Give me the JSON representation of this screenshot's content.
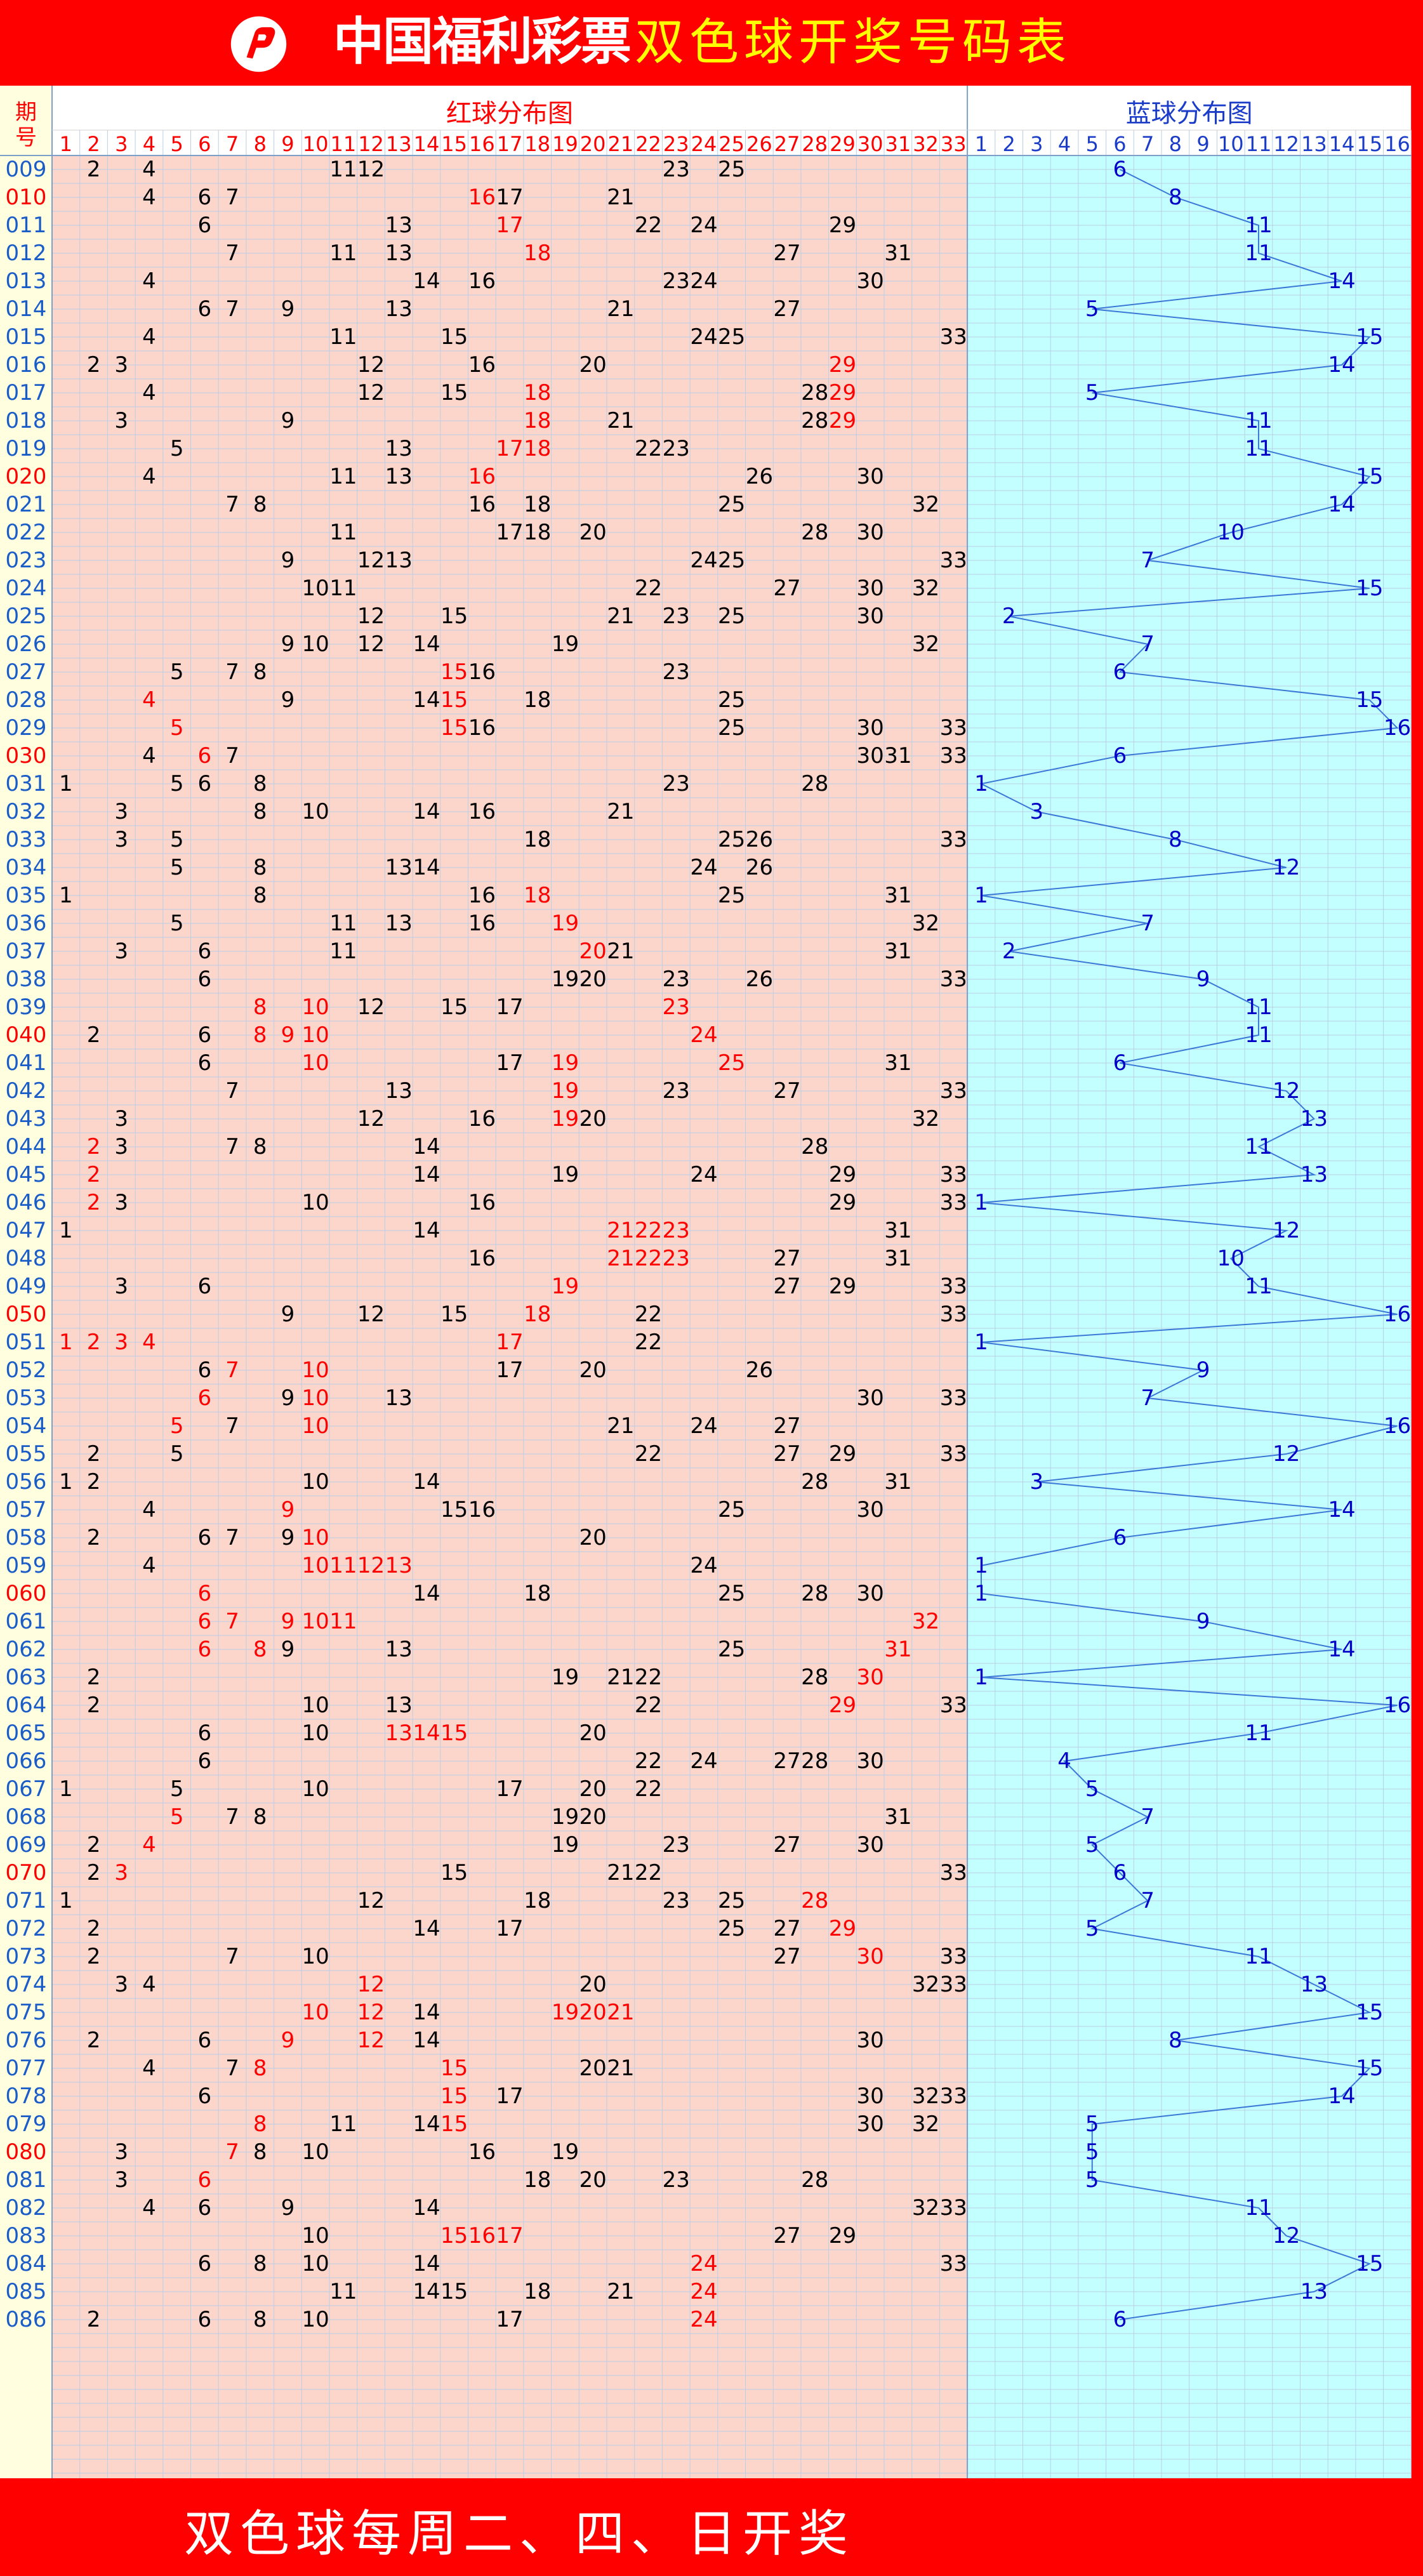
{
  "banner": {
    "logo_text": "中国福利彩票",
    "title": "双色球开奖号码表"
  },
  "footer": {
    "text": "双色球每周二、四、日开奖"
  },
  "colors": {
    "red_zone": "#fcd6cb",
    "blue_zone": "#c4ffff",
    "period_zone": "#ffffe0",
    "grid": "#b8cfe6",
    "red_text": "#ff0000",
    "blue_text": "#0000c8",
    "line": "#3a78d8"
  },
  "chart_data": {
    "type": "table",
    "period_header": "期号",
    "red_header": "红球分布图",
    "blue_header": "蓝球分布图",
    "red_numbers": [
      "1",
      "2",
      "3",
      "4",
      "5",
      "6",
      "7",
      "8",
      "9",
      "10",
      "11",
      "12",
      "13",
      "14",
      "15",
      "16",
      "17",
      "18",
      "19",
      "20",
      "21",
      "22",
      "23",
      "24",
      "25",
      "26",
      "27",
      "28",
      "29",
      "30",
      "31",
      "32",
      "33"
    ],
    "blue_numbers": [
      "1",
      "2",
      "3",
      "4",
      "5",
      "6",
      "7",
      "8",
      "9",
      "10",
      "11",
      "12",
      "13",
      "14",
      "15",
      "16"
    ],
    "draws": [
      {
        "period": "009",
        "red": [
          2,
          4,
          11,
          12,
          23,
          25
        ],
        "blue": 6
      },
      {
        "period": "010",
        "red": [
          4,
          6,
          7,
          16,
          17,
          21
        ],
        "blue": 8
      },
      {
        "period": "011",
        "red": [
          6,
          13,
          17,
          22,
          24,
          29
        ],
        "blue": 11
      },
      {
        "period": "012",
        "red": [
          7,
          11,
          13,
          18,
          27,
          31
        ],
        "blue": 11
      },
      {
        "period": "013",
        "red": [
          4,
          14,
          16,
          23,
          24,
          30
        ],
        "blue": 14
      },
      {
        "period": "014",
        "red": [
          6,
          7,
          9,
          13,
          21,
          27
        ],
        "blue": 5
      },
      {
        "period": "015",
        "red": [
          4,
          11,
          15,
          24,
          25,
          33
        ],
        "blue": 15
      },
      {
        "period": "016",
        "red": [
          2,
          3,
          12,
          16,
          20,
          29
        ],
        "blue": 14
      },
      {
        "period": "017",
        "red": [
          4,
          12,
          15,
          18,
          28,
          29
        ],
        "blue": 5
      },
      {
        "period": "018",
        "red": [
          3,
          9,
          18,
          21,
          28,
          29
        ],
        "blue": 11
      },
      {
        "period": "019",
        "red": [
          5,
          13,
          17,
          18,
          22,
          23
        ],
        "blue": 11
      },
      {
        "period": "020",
        "red": [
          4,
          11,
          13,
          16,
          26,
          30
        ],
        "blue": 15
      },
      {
        "period": "021",
        "red": [
          7,
          8,
          16,
          18,
          25,
          32
        ],
        "blue": 14
      },
      {
        "period": "022",
        "red": [
          11,
          17,
          18,
          20,
          28,
          30
        ],
        "blue": 10
      },
      {
        "period": "023",
        "red": [
          9,
          12,
          13,
          24,
          25,
          33
        ],
        "blue": 7
      },
      {
        "period": "024",
        "red": [
          10,
          11,
          22,
          27,
          30,
          32
        ],
        "blue": 15
      },
      {
        "period": "025",
        "red": [
          12,
          15,
          21,
          23,
          25,
          30
        ],
        "blue": 2
      },
      {
        "period": "026",
        "red": [
          9,
          10,
          12,
          14,
          19,
          32
        ],
        "blue": 7
      },
      {
        "period": "027",
        "red": [
          5,
          7,
          8,
          15,
          16,
          23
        ],
        "blue": 6
      },
      {
        "period": "028",
        "red": [
          4,
          9,
          14,
          15,
          18,
          25
        ],
        "blue": 15
      },
      {
        "period": "029",
        "red": [
          5,
          15,
          16,
          25,
          30,
          33
        ],
        "blue": 16
      },
      {
        "period": "030",
        "red": [
          4,
          6,
          7,
          30,
          31,
          33
        ],
        "blue": 6
      },
      {
        "period": "031",
        "red": [
          1,
          5,
          6,
          8,
          23,
          28
        ],
        "blue": 1
      },
      {
        "period": "032",
        "red": [
          3,
          8,
          10,
          14,
          16,
          21
        ],
        "blue": 3
      },
      {
        "period": "033",
        "red": [
          3,
          5,
          18,
          25,
          26,
          33
        ],
        "blue": 8
      },
      {
        "period": "034",
        "red": [
          5,
          8,
          13,
          14,
          24,
          26
        ],
        "blue": 12
      },
      {
        "period": "035",
        "red": [
          1,
          8,
          16,
          18,
          25,
          31
        ],
        "blue": 1
      },
      {
        "period": "036",
        "red": [
          5,
          11,
          13,
          16,
          19,
          32
        ],
        "blue": 7
      },
      {
        "period": "037",
        "red": [
          3,
          6,
          11,
          20,
          21,
          31
        ],
        "blue": 2
      },
      {
        "period": "038",
        "red": [
          6,
          19,
          20,
          23,
          26,
          33
        ],
        "blue": 9
      },
      {
        "period": "039",
        "red": [
          8,
          10,
          12,
          15,
          17,
          23
        ],
        "blue": 11
      },
      {
        "period": "040",
        "red": [
          2,
          6,
          8,
          9,
          10,
          24
        ],
        "blue": 11
      },
      {
        "period": "041",
        "red": [
          6,
          10,
          17,
          19,
          25,
          31
        ],
        "blue": 6
      },
      {
        "period": "042",
        "red": [
          7,
          13,
          19,
          23,
          27,
          33
        ],
        "blue": 12
      },
      {
        "period": "043",
        "red": [
          3,
          12,
          16,
          19,
          20,
          32
        ],
        "blue": 13
      },
      {
        "period": "044",
        "red": [
          2,
          3,
          7,
          8,
          14,
          28
        ],
        "blue": 11
      },
      {
        "period": "045",
        "red": [
          2,
          14,
          19,
          24,
          29,
          33
        ],
        "blue": 13
      },
      {
        "period": "046",
        "red": [
          2,
          3,
          10,
          16,
          29,
          33
        ],
        "blue": 1
      },
      {
        "period": "047",
        "red": [
          1,
          14,
          21,
          22,
          23,
          31
        ],
        "blue": 12
      },
      {
        "period": "048",
        "red": [
          16,
          21,
          22,
          23,
          27,
          31
        ],
        "blue": 10
      },
      {
        "period": "049",
        "red": [
          3,
          6,
          19,
          27,
          29,
          33
        ],
        "blue": 11
      },
      {
        "period": "050",
        "red": [
          9,
          12,
          15,
          18,
          22,
          33
        ],
        "blue": 16
      },
      {
        "period": "051",
        "red": [
          1,
          2,
          3,
          4,
          17,
          22
        ],
        "blue": 1
      },
      {
        "period": "052",
        "red": [
          6,
          7,
          10,
          17,
          20,
          26
        ],
        "blue": 9
      },
      {
        "period": "053",
        "red": [
          6,
          9,
          10,
          13,
          30,
          33
        ],
        "blue": 7
      },
      {
        "period": "054",
        "red": [
          5,
          7,
          10,
          21,
          24,
          27
        ],
        "blue": 16
      },
      {
        "period": "055",
        "red": [
          2,
          5,
          22,
          27,
          29,
          33
        ],
        "blue": 12
      },
      {
        "period": "056",
        "red": [
          1,
          2,
          10,
          14,
          28,
          31
        ],
        "blue": 3
      },
      {
        "period": "057",
        "red": [
          4,
          9,
          15,
          16,
          25,
          30
        ],
        "blue": 14
      },
      {
        "period": "058",
        "red": [
          2,
          6,
          7,
          9,
          10,
          20
        ],
        "blue": 6
      },
      {
        "period": "059",
        "red": [
          4,
          10,
          11,
          12,
          13,
          24
        ],
        "blue": 1
      },
      {
        "period": "060",
        "red": [
          6,
          14,
          18,
          25,
          28,
          30
        ],
        "blue": 1
      },
      {
        "period": "061",
        "red": [
          6,
          7,
          9,
          10,
          11,
          32
        ],
        "blue": 9
      },
      {
        "period": "062",
        "red": [
          6,
          8,
          9,
          13,
          25,
          31
        ],
        "blue": 14
      },
      {
        "period": "063",
        "red": [
          2,
          19,
          21,
          22,
          28,
          30
        ],
        "blue": 1
      },
      {
        "period": "064",
        "red": [
          2,
          10,
          13,
          22,
          29,
          33
        ],
        "blue": 16
      },
      {
        "period": "065",
        "red": [
          6,
          10,
          13,
          14,
          15,
          20
        ],
        "blue": 11
      },
      {
        "period": "066",
        "red": [
          6,
          22,
          24,
          27,
          28,
          30
        ],
        "blue": 4
      },
      {
        "period": "067",
        "red": [
          1,
          5,
          10,
          17,
          20,
          22
        ],
        "blue": 5
      },
      {
        "period": "068",
        "red": [
          5,
          7,
          8,
          19,
          20,
          31
        ],
        "blue": 7
      },
      {
        "period": "069",
        "red": [
          2,
          4,
          19,
          23,
          27,
          30
        ],
        "blue": 5
      },
      {
        "period": "070",
        "red": [
          2,
          3,
          15,
          21,
          22,
          33
        ],
        "blue": 6
      },
      {
        "period": "071",
        "red": [
          1,
          12,
          18,
          23,
          25,
          28
        ],
        "blue": 7
      },
      {
        "period": "072",
        "red": [
          2,
          14,
          17,
          25,
          27,
          29
        ],
        "blue": 5
      },
      {
        "period": "073",
        "red": [
          2,
          7,
          10,
          27,
          30,
          33
        ],
        "blue": 11
      },
      {
        "period": "074",
        "red": [
          3,
          4,
          12,
          20,
          32,
          33
        ],
        "blue": 13
      },
      {
        "period": "075",
        "red": [
          10,
          12,
          14,
          19,
          20,
          21
        ],
        "blue": 15
      },
      {
        "period": "076",
        "red": [
          2,
          6,
          9,
          12,
          14,
          30
        ],
        "blue": 8
      },
      {
        "period": "077",
        "red": [
          4,
          7,
          8,
          15,
          20,
          21
        ],
        "blue": 15
      },
      {
        "period": "078",
        "red": [
          6,
          15,
          17,
          30,
          32,
          33
        ],
        "blue": 14
      },
      {
        "period": "079",
        "red": [
          8,
          11,
          14,
          15,
          30,
          32
        ],
        "blue": 5
      },
      {
        "period": "080",
        "red": [
          3,
          7,
          8,
          10,
          16,
          19
        ],
        "blue": 5
      },
      {
        "period": "081",
        "red": [
          3,
          6,
          18,
          20,
          23,
          28
        ],
        "blue": 5
      },
      {
        "period": "082",
        "red": [
          4,
          6,
          9,
          14,
          32,
          33
        ],
        "blue": 11
      },
      {
        "period": "083",
        "red": [
          10,
          15,
          16,
          17,
          27,
          29
        ],
        "blue": 12
      },
      {
        "period": "084",
        "red": [
          6,
          8,
          10,
          14,
          24,
          33
        ],
        "blue": 15
      },
      {
        "period": "085",
        "red": [
          11,
          14,
          15,
          18,
          21,
          24
        ],
        "blue": 13
      },
      {
        "period": "086",
        "red": [
          2,
          6,
          8,
          10,
          17,
          24
        ],
        "blue": 6
      }
    ],
    "red_highlight_periods": [
      "010",
      "020",
      "030",
      "040",
      "050",
      "060",
      "070",
      "080"
    ],
    "highlighted_red_balls": {
      "010": [
        16
      ],
      "011": [
        17
      ],
      "012": [
        18
      ],
      "016": [
        29
      ],
      "017": [
        18,
        29
      ],
      "018": [
        18,
        29
      ],
      "019": [
        17,
        18
      ],
      "020": [
        16
      ],
      "027": [
        15
      ],
      "028": [
        4,
        15
      ],
      "029": [
        5,
        15
      ],
      "030": [
        6
      ],
      "035": [
        18
      ],
      "036": [
        19
      ],
      "037": [
        20
      ],
      "039": [
        8,
        10,
        23
      ],
      "040": [
        8,
        9,
        10,
        24
      ],
      "041": [
        10,
        19,
        25
      ],
      "042": [
        19
      ],
      "043": [
        19
      ],
      "044": [
        2
      ],
      "045": [
        2
      ],
      "046": [
        2
      ],
      "047": [
        21,
        22,
        23
      ],
      "048": [
        21,
        22,
        23
      ],
      "049": [
        19
      ],
      "050": [
        18
      ],
      "051": [
        1,
        2,
        3,
        4,
        17
      ],
      "052": [
        7,
        10
      ],
      "053": [
        6,
        10
      ],
      "054": [
        5,
        10
      ],
      "057": [
        9
      ],
      "058": [
        10
      ],
      "059": [
        10,
        11,
        12,
        13
      ],
      "060": [
        6
      ],
      "061": [
        6,
        7,
        9,
        10,
        11,
        32
      ],
      "062": [
        6,
        8,
        31
      ],
      "063": [
        30
      ],
      "064": [
        29
      ],
      "065": [
        13,
        14,
        15
      ],
      "068": [
        5
      ],
      "069": [
        4
      ],
      "070": [
        3
      ],
      "071": [
        28
      ],
      "072": [
        29
      ],
      "073": [
        30
      ],
      "074": [
        12
      ],
      "075": [
        10,
        12,
        19,
        20,
        21
      ],
      "076": [
        9,
        12
      ],
      "077": [
        8,
        15
      ],
      "078": [
        15
      ],
      "079": [
        8,
        15
      ],
      "080": [
        7
      ],
      "081": [
        6
      ],
      "083": [
        15,
        16,
        17
      ],
      "084": [
        24
      ],
      "085": [
        24
      ],
      "086": [
        24
      ]
    }
  }
}
